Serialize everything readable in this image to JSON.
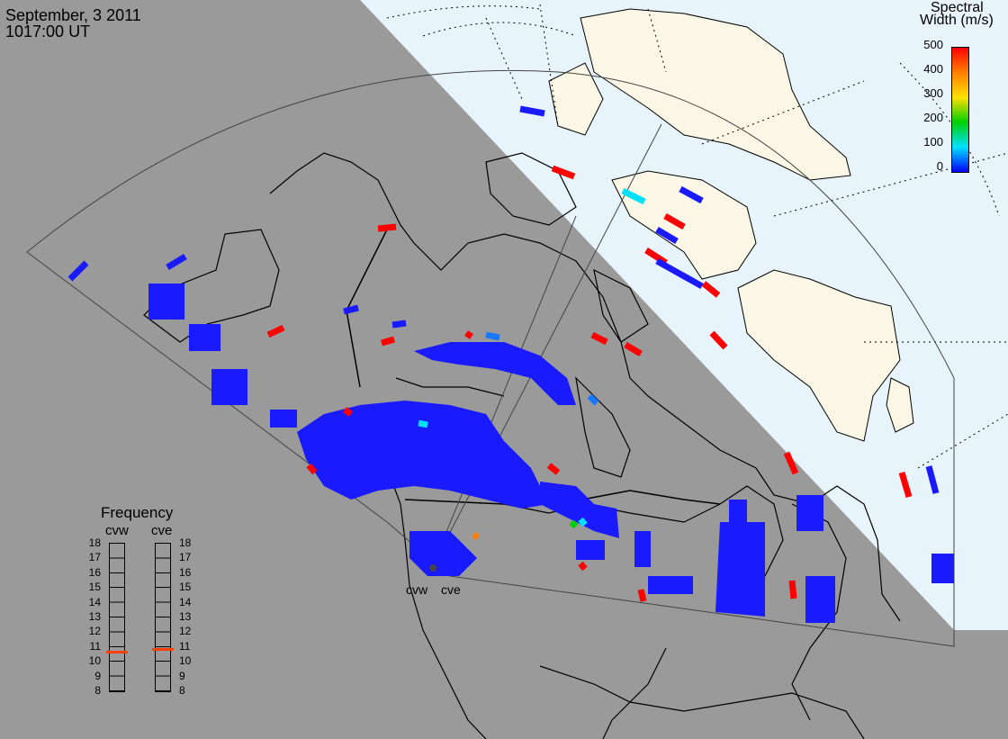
{
  "header": {
    "date": "September, 3 2011",
    "time": "1017:00 UT"
  },
  "colorbar": {
    "title_line1": "Spectral",
    "title_line2": "Width (m/s)",
    "ticks": [
      "500",
      "400",
      "300",
      "200",
      "100",
      "0"
    ],
    "colors": [
      "#ff0000",
      "#ff8000",
      "#ffe000",
      "#00d000",
      "#00e0ff",
      "#0000ff"
    ]
  },
  "frequency": {
    "title": "Frequency",
    "radars": [
      "cvw",
      "cve"
    ],
    "ticks": [
      "18",
      "17",
      "16",
      "15",
      "14",
      "13",
      "12",
      "11",
      "10",
      "9",
      "8"
    ],
    "cvw_mhz": 10.6,
    "cve_mhz": 10.8,
    "indicator_color": "#ff4000"
  },
  "sites": [
    "cvw",
    "cve"
  ],
  "colors": {
    "night": "#9a9a9a",
    "day_ocean": "#e8f4fb",
    "day_land": "#fbf7e6",
    "scatter": "#1a1aff"
  }
}
